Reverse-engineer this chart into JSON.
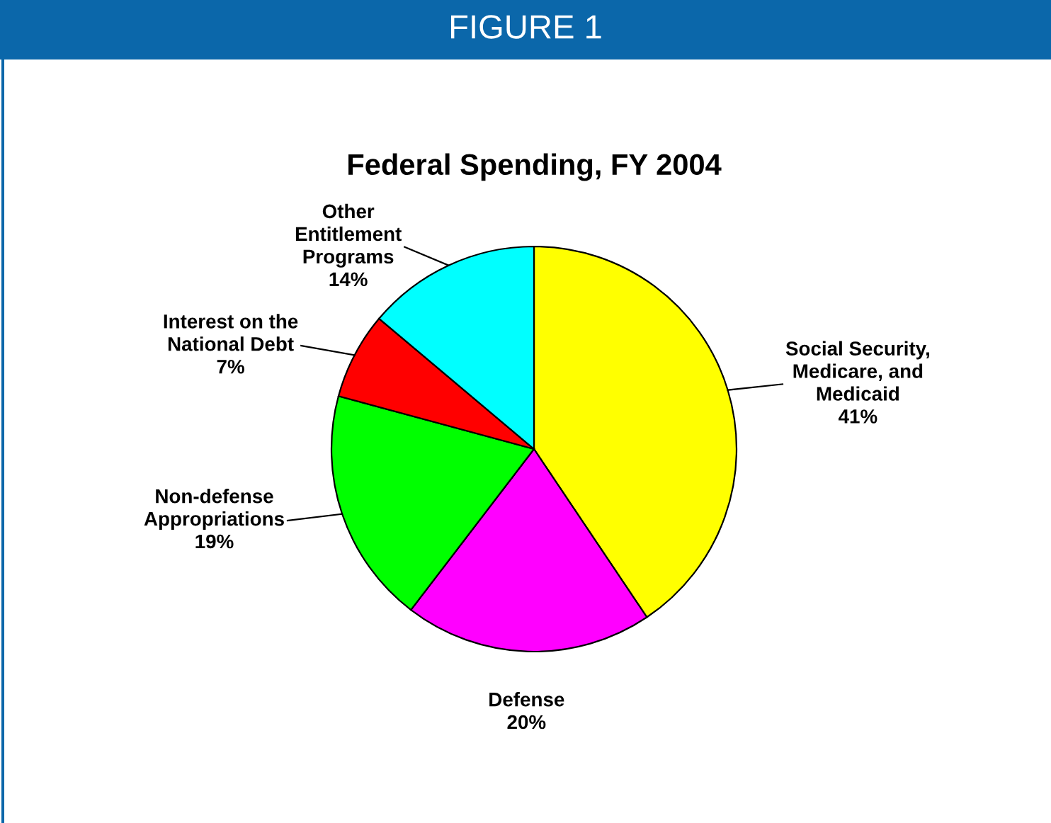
{
  "chart_data": {
    "type": "pie",
    "title": "Federal Spending, FY 2004",
    "annotations": [
      "FIGURE 1"
    ],
    "categories": [
      "Social Security,\nMedicare, and\nMedicaid",
      "Defense",
      "Non-defense\nAppropriations",
      "Interest on the\nNational Debt",
      "Other\nEntitlement\nPrograms"
    ],
    "values": [
      41,
      20,
      19,
      7,
      14
    ],
    "value_labels": [
      "41%",
      "20%",
      "19%",
      "7%",
      "14%"
    ],
    "colors": [
      "#ffff00",
      "#ff00ff",
      "#00ff00",
      "#ff0000",
      "#00ffff"
    ],
    "legend": false
  }
}
